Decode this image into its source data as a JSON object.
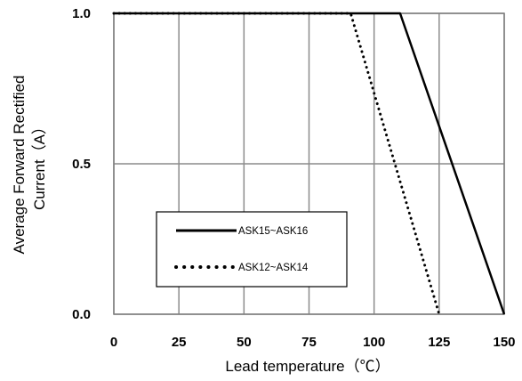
{
  "chart_data": {
    "type": "line",
    "xlabel": "Lead  temperature（℃）",
    "ylabel_line1": "Average Forward Rectified",
    "ylabel_line2": "Current（A）",
    "xlim": [
      0,
      150
    ],
    "ylim": [
      0,
      1.0
    ],
    "x_ticks": [
      0,
      25,
      50,
      75,
      100,
      125,
      150
    ],
    "x_tick_labels": [
      "0",
      "25",
      "50",
      "75",
      "100",
      "125",
      "150"
    ],
    "y_ticks": [
      0,
      0.5,
      1.0
    ],
    "y_tick_labels": [
      "0.0",
      "0.5",
      "1.0"
    ],
    "grid": true,
    "legend_placement": "bottom-left",
    "series": [
      {
        "name": "ASK15~ASK16",
        "style": "solid",
        "color": "#000000",
        "x": [
          0,
          110,
          150
        ],
        "y": [
          1.0,
          1.0,
          0.0
        ]
      },
      {
        "name": "ASK12~ASK14",
        "style": "dotted",
        "color": "#000000",
        "x": [
          0,
          91,
          125
        ],
        "y": [
          1.0,
          1.0,
          0.0
        ]
      }
    ]
  }
}
